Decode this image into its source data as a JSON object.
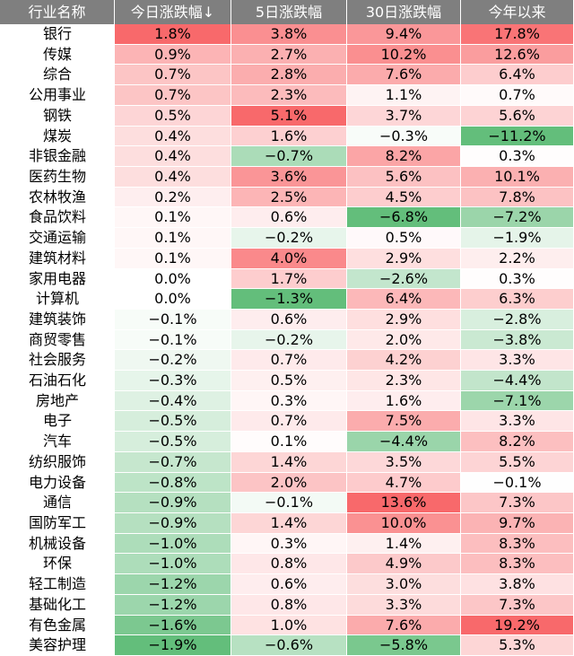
{
  "chart_data": {
    "type": "heatmap",
    "header": {
      "name": "行业名称",
      "columns": [
        "今日涨跌幅↓",
        "5日涨跌幅",
        "30日涨跌幅",
        "今年以来"
      ]
    },
    "rows": [
      {
        "name": "银行",
        "values": [
          1.8,
          3.8,
          9.4,
          17.8
        ],
        "labels": [
          "1.8%",
          "3.8%",
          "9.4%",
          "17.8%"
        ]
      },
      {
        "name": "传媒",
        "values": [
          0.9,
          2.7,
          10.2,
          12.6
        ],
        "labels": [
          "0.9%",
          "2.7%",
          "10.2%",
          "12.6%"
        ]
      },
      {
        "name": "综合",
        "values": [
          0.7,
          2.8,
          7.6,
          6.4
        ],
        "labels": [
          "0.7%",
          "2.8%",
          "7.6%",
          "6.4%"
        ]
      },
      {
        "name": "公用事业",
        "values": [
          0.7,
          2.3,
          1.1,
          0.7
        ],
        "labels": [
          "0.7%",
          "2.3%",
          "1.1%",
          "0.7%"
        ]
      },
      {
        "name": "钢铁",
        "values": [
          0.5,
          5.1,
          3.7,
          5.6
        ],
        "labels": [
          "0.5%",
          "5.1%",
          "3.7%",
          "5.6%"
        ]
      },
      {
        "name": "煤炭",
        "values": [
          0.4,
          1.6,
          -0.3,
          -11.2
        ],
        "labels": [
          "0.4%",
          "1.6%",
          "−0.3%",
          "−11.2%"
        ]
      },
      {
        "name": "非银金融",
        "values": [
          0.4,
          -0.7,
          8.2,
          0.3
        ],
        "labels": [
          "0.4%",
          "−0.7%",
          "8.2%",
          "0.3%"
        ]
      },
      {
        "name": "医药生物",
        "values": [
          0.4,
          3.6,
          5.6,
          10.1
        ],
        "labels": [
          "0.4%",
          "3.6%",
          "5.6%",
          "10.1%"
        ]
      },
      {
        "name": "农林牧渔",
        "values": [
          0.2,
          2.5,
          4.5,
          7.8
        ],
        "labels": [
          "0.2%",
          "2.5%",
          "4.5%",
          "7.8%"
        ]
      },
      {
        "name": "食品饮料",
        "values": [
          0.1,
          0.6,
          -6.8,
          -7.2
        ],
        "labels": [
          "0.1%",
          "0.6%",
          "−6.8%",
          "−7.2%"
        ]
      },
      {
        "name": "交通运输",
        "values": [
          0.1,
          -0.2,
          0.5,
          -1.9
        ],
        "labels": [
          "0.1%",
          "−0.2%",
          "0.5%",
          "−1.9%"
        ]
      },
      {
        "name": "建筑材料",
        "values": [
          0.1,
          4.0,
          2.9,
          2.2
        ],
        "labels": [
          "0.1%",
          "4.0%",
          "2.9%",
          "2.2%"
        ]
      },
      {
        "name": "家用电器",
        "values": [
          0.0,
          1.7,
          -2.6,
          0.3
        ],
        "labels": [
          "0.0%",
          "1.7%",
          "−2.6%",
          "0.3%"
        ]
      },
      {
        "name": "计算机",
        "values": [
          0.0,
          -1.3,
          6.4,
          6.3
        ],
        "labels": [
          "0.0%",
          "−1.3%",
          "6.4%",
          "6.3%"
        ]
      },
      {
        "name": "建筑装饰",
        "values": [
          -0.1,
          0.6,
          2.9,
          -2.8
        ],
        "labels": [
          "−0.1%",
          "0.6%",
          "2.9%",
          "−2.8%"
        ]
      },
      {
        "name": "商贸零售",
        "values": [
          -0.1,
          -0.2,
          2.0,
          -3.8
        ],
        "labels": [
          "−0.1%",
          "−0.2%",
          "2.0%",
          "−3.8%"
        ]
      },
      {
        "name": "社会服务",
        "values": [
          -0.2,
          0.7,
          4.2,
          3.3
        ],
        "labels": [
          "−0.2%",
          "0.7%",
          "4.2%",
          "3.3%"
        ]
      },
      {
        "name": "石油石化",
        "values": [
          -0.3,
          0.5,
          2.3,
          -4.4
        ],
        "labels": [
          "−0.3%",
          "0.5%",
          "2.3%",
          "−4.4%"
        ]
      },
      {
        "name": "房地产",
        "values": [
          -0.4,
          0.3,
          1.6,
          -7.1
        ],
        "labels": [
          "−0.4%",
          "0.3%",
          "1.6%",
          "−7.1%"
        ]
      },
      {
        "name": "电子",
        "values": [
          -0.5,
          0.7,
          7.5,
          3.3
        ],
        "labels": [
          "−0.5%",
          "0.7%",
          "7.5%",
          "3.3%"
        ]
      },
      {
        "name": "汽车",
        "values": [
          -0.5,
          0.1,
          -4.4,
          8.2
        ],
        "labels": [
          "−0.5%",
          "0.1%",
          "−4.4%",
          "8.2%"
        ]
      },
      {
        "name": "纺织服饰",
        "values": [
          -0.7,
          1.4,
          3.5,
          5.5
        ],
        "labels": [
          "−0.7%",
          "1.4%",
          "3.5%",
          "5.5%"
        ]
      },
      {
        "name": "电力设备",
        "values": [
          -0.8,
          2.0,
          4.7,
          -0.1
        ],
        "labels": [
          "−0.8%",
          "2.0%",
          "4.7%",
          "−0.1%"
        ]
      },
      {
        "name": "通信",
        "values": [
          -0.9,
          -0.1,
          13.6,
          7.3
        ],
        "labels": [
          "−0.9%",
          "−0.1%",
          "13.6%",
          "7.3%"
        ]
      },
      {
        "name": "国防军工",
        "values": [
          -0.9,
          1.4,
          10.0,
          9.7
        ],
        "labels": [
          "−0.9%",
          "1.4%",
          "10.0%",
          "9.7%"
        ]
      },
      {
        "name": "机械设备",
        "values": [
          -1.0,
          0.3,
          1.4,
          8.3
        ],
        "labels": [
          "−1.0%",
          "0.3%",
          "1.4%",
          "8.3%"
        ]
      },
      {
        "name": "环保",
        "values": [
          -1.0,
          0.8,
          4.9,
          8.3
        ],
        "labels": [
          "−1.0%",
          "0.8%",
          "4.9%",
          "8.3%"
        ]
      },
      {
        "name": "轻工制造",
        "values": [
          -1.2,
          0.6,
          3.0,
          3.8
        ],
        "labels": [
          "−1.2%",
          "0.6%",
          "3.0%",
          "3.8%"
        ]
      },
      {
        "name": "基础化工",
        "values": [
          -1.2,
          0.8,
          3.3,
          7.3
        ],
        "labels": [
          "−1.2%",
          "0.8%",
          "3.3%",
          "7.3%"
        ]
      },
      {
        "name": "有色金属",
        "values": [
          -1.6,
          1.0,
          7.6,
          19.2
        ],
        "labels": [
          "−1.6%",
          "1.0%",
          "7.6%",
          "19.2%"
        ]
      },
      {
        "name": "美容护理",
        "values": [
          -1.9,
          -0.6,
          -5.8,
          5.3
        ],
        "labels": [
          "−1.9%",
          "−0.6%",
          "−5.8%",
          "5.3%"
        ]
      }
    ],
    "colors": {
      "header_bg": "#7f7f7f",
      "header_text": "#ffffff",
      "positive": "#f8696b",
      "negative": "#63be7b",
      "neutral": "#ffffff"
    }
  }
}
